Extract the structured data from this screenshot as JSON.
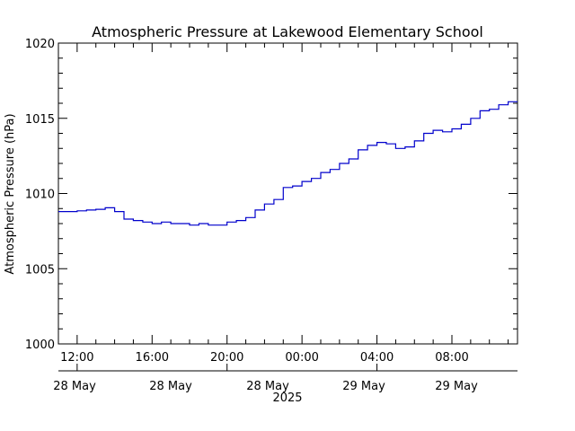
{
  "chart_data": {
    "type": "line",
    "title": "Atmospheric Pressure at Lakewood Elementary School",
    "ylabel": "Atmospheric Pressure (hPa)",
    "xlabel": "",
    "year_label": "2025",
    "ylim": [
      1000,
      1020
    ],
    "yticks": [
      1000,
      1005,
      1010,
      1015,
      1020
    ],
    "xlim": [
      "2025-05-28T11:00",
      "2025-05-29T11:30"
    ],
    "xticks": [
      {
        "time": "2025-05-28T12:00",
        "label": "12:00",
        "date": "28 May"
      },
      {
        "time": "2025-05-28T16:00",
        "label": "16:00",
        "date": "28 May"
      },
      {
        "time": "2025-05-28T20:00",
        "label": "20:00",
        "date": "28 May"
      },
      {
        "time": "2025-05-29T00:00",
        "label": "00:00",
        "date": "29 May"
      },
      {
        "time": "2025-05-29T04:00",
        "label": "04:00",
        "date": "29 May"
      },
      {
        "time": "2025-05-29T08:00",
        "label": "08:00",
        "date": "29 May"
      }
    ],
    "grid": false,
    "colors": {
      "line": "#0000cc",
      "axes": "#000000"
    },
    "series": [
      {
        "x": [
          "2025-05-28T11:00",
          "2025-05-28T11:30",
          "2025-05-28T12:00",
          "2025-05-28T12:30",
          "2025-05-28T13:00",
          "2025-05-28T13:30",
          "2025-05-28T14:00",
          "2025-05-28T14:30",
          "2025-05-28T15:00",
          "2025-05-28T15:30",
          "2025-05-28T16:00",
          "2025-05-28T16:30",
          "2025-05-28T17:00",
          "2025-05-28T17:30",
          "2025-05-28T18:00",
          "2025-05-28T18:30",
          "2025-05-28T19:00",
          "2025-05-28T19:30",
          "2025-05-28T20:00",
          "2025-05-28T20:30",
          "2025-05-28T21:00",
          "2025-05-28T21:30",
          "2025-05-28T22:00",
          "2025-05-28T22:30",
          "2025-05-28T23:00",
          "2025-05-28T23:30",
          "2025-05-29T00:00",
          "2025-05-29T00:30",
          "2025-05-29T01:00",
          "2025-05-29T01:30",
          "2025-05-29T02:00",
          "2025-05-29T02:30",
          "2025-05-29T03:00",
          "2025-05-29T03:30",
          "2025-05-29T04:00",
          "2025-05-29T04:30",
          "2025-05-29T05:00",
          "2025-05-29T05:30",
          "2025-05-29T06:00",
          "2025-05-29T06:30",
          "2025-05-29T07:00",
          "2025-05-29T07:30",
          "2025-05-29T08:00",
          "2025-05-29T08:30",
          "2025-05-29T09:00",
          "2025-05-29T09:30",
          "2025-05-29T10:00",
          "2025-05-29T10:30",
          "2025-05-29T11:00"
        ],
        "values": [
          1008.8,
          1008.8,
          1008.85,
          1008.9,
          1008.95,
          1009.05,
          1008.8,
          1008.3,
          1008.2,
          1008.1,
          1008.0,
          1008.1,
          1008.0,
          1008.0,
          1007.9,
          1008.0,
          1007.9,
          1007.9,
          1008.1,
          1008.2,
          1008.4,
          1008.9,
          1009.3,
          1009.6,
          1010.4,
          1010.5,
          1010.8,
          1011.0,
          1011.4,
          1011.6,
          1012.0,
          1012.3,
          1012.9,
          1013.2,
          1013.4,
          1013.3,
          1013.0,
          1013.1,
          1013.5,
          1014.0,
          1014.2,
          1014.1,
          1014.3,
          1014.6,
          1015.0,
          1015.5,
          1015.6,
          1015.9,
          1016.1
        ]
      }
    ]
  }
}
